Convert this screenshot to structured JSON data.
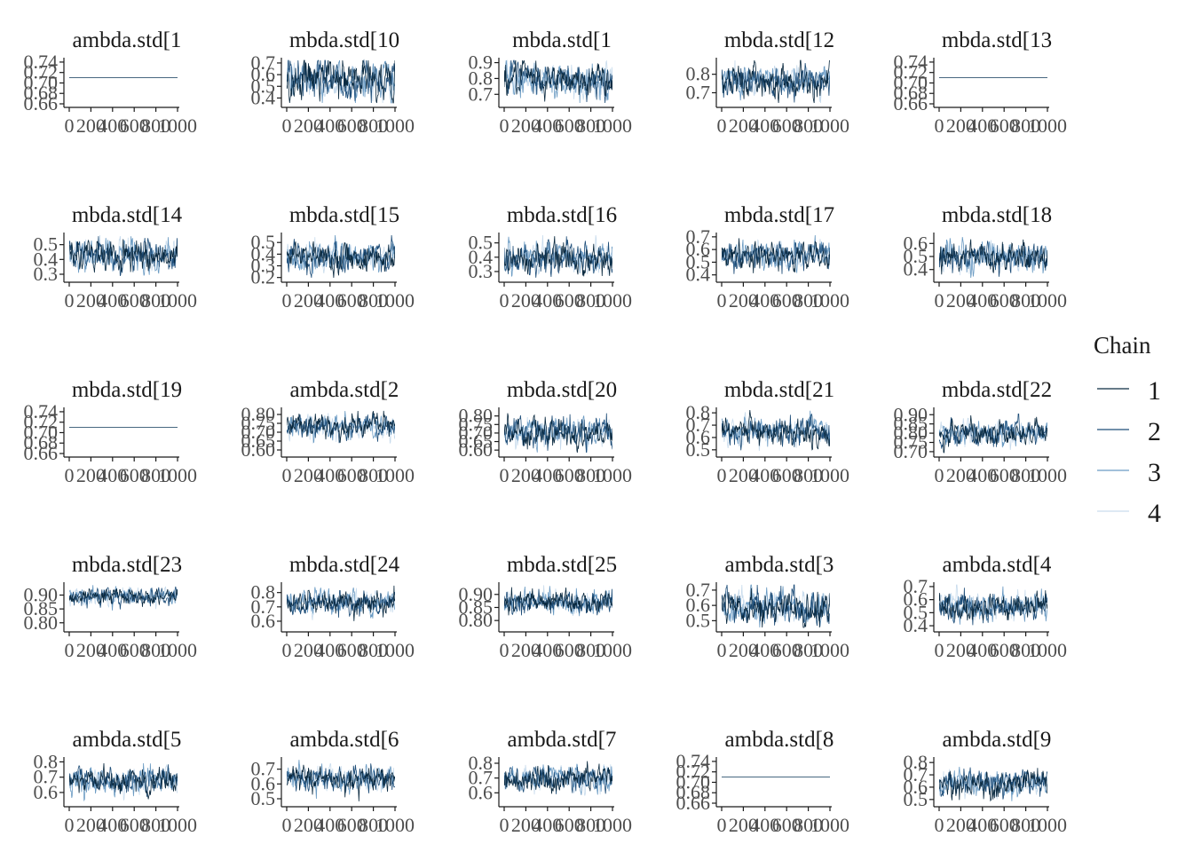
{
  "chart_data": {
    "type": "line",
    "x_range": [
      0,
      1000
    ],
    "x_tick_labels": [
      "0",
      "200",
      "400",
      "600",
      "800",
      "1000"
    ],
    "legend": {
      "title": "Chain",
      "position": "right",
      "entries": [
        {
          "label": "1",
          "color": "#0b2a40"
        },
        {
          "label": "2",
          "color": "#1f4e79"
        },
        {
          "label": "3",
          "color": "#6b9bc3"
        },
        {
          "label": "4",
          "color": "#c9dced"
        }
      ]
    },
    "panels": [
      {
        "title": "ambda.std[1",
        "y_ticks": [
          "0.66",
          "0.68",
          "0.70",
          "0.72",
          "0.74"
        ],
        "ylim": [
          0.66,
          0.745
        ],
        "center": 0.71,
        "spread": 0,
        "flat": true
      },
      {
        "title": "mbda.std[10",
        "y_ticks": [
          "0.4",
          "0.5",
          "0.6",
          "0.7"
        ],
        "ylim": [
          0.35,
          0.73
        ],
        "center": 0.56,
        "spread": 0.08
      },
      {
        "title": "mbda.std[1",
        "y_ticks": [
          "0.7",
          "0.8",
          "0.9"
        ],
        "ylim": [
          0.64,
          0.92
        ],
        "center": 0.79,
        "spread": 0.05
      },
      {
        "title": "mbda.std[12",
        "y_ticks": [
          "0.7",
          "0.8"
        ],
        "ylim": [
          0.64,
          0.88
        ],
        "center": 0.77,
        "spread": 0.04
      },
      {
        "title": "mbda.std[13",
        "y_ticks": [
          "0.66",
          "0.68",
          "0.70",
          "0.72",
          "0.74"
        ],
        "ylim": [
          0.66,
          0.745
        ],
        "center": 0.71,
        "spread": 0,
        "flat": true
      },
      {
        "title": "mbda.std[14",
        "y_ticks": [
          "0.3",
          "0.4",
          "0.5"
        ],
        "ylim": [
          0.27,
          0.57
        ],
        "center": 0.43,
        "spread": 0.05
      },
      {
        "title": "mbda.std[15",
        "y_ticks": [
          "0.2",
          "0.3",
          "0.4",
          "0.5"
        ],
        "ylim": [
          0.19,
          0.57
        ],
        "center": 0.38,
        "spread": 0.06
      },
      {
        "title": "mbda.std[16",
        "y_ticks": [
          "0.3",
          "0.4",
          "0.5"
        ],
        "ylim": [
          0.25,
          0.56
        ],
        "center": 0.39,
        "spread": 0.05
      },
      {
        "title": "mbda.std[17",
        "y_ticks": [
          "0.4",
          "0.5",
          "0.6",
          "0.7"
        ],
        "ylim": [
          0.37,
          0.72
        ],
        "center": 0.55,
        "spread": 0.05
      },
      {
        "title": "mbda.std[18",
        "y_ticks": [
          "0.4",
          "0.5",
          "0.6"
        ],
        "ylim": [
          0.33,
          0.67
        ],
        "center": 0.5,
        "spread": 0.05
      },
      {
        "title": "mbda.std[19",
        "y_ticks": [
          "0.66",
          "0.68",
          "0.70",
          "0.72",
          "0.74"
        ],
        "ylim": [
          0.66,
          0.745
        ],
        "center": 0.71,
        "spread": 0,
        "flat": true
      },
      {
        "title": "ambda.std[2",
        "y_ticks": [
          "0.60",
          "0.65",
          "0.70",
          "0.75",
          "0.80"
        ],
        "ylim": [
          0.58,
          0.83
        ],
        "center": 0.73,
        "spread": 0.03
      },
      {
        "title": "mbda.std[20",
        "y_ticks": [
          "0.60",
          "0.65",
          "0.70",
          "0.75",
          "0.80"
        ],
        "ylim": [
          0.58,
          0.84
        ],
        "center": 0.71,
        "spread": 0.04
      },
      {
        "title": "mbda.std[21",
        "y_ticks": [
          "0.5",
          "0.6",
          "0.7",
          "0.8"
        ],
        "ylim": [
          0.47,
          0.83
        ],
        "center": 0.65,
        "spread": 0.05
      },
      {
        "title": "mbda.std[22",
        "y_ticks": [
          "0.70",
          "0.75",
          "0.80",
          "0.85",
          "0.90"
        ],
        "ylim": [
          0.69,
          0.93
        ],
        "center": 0.8,
        "spread": 0.03
      },
      {
        "title": "mbda.std[23",
        "y_ticks": [
          "0.80",
          "0.85",
          "0.90"
        ],
        "ylim": [
          0.78,
          0.94
        ],
        "center": 0.895,
        "spread": 0.015
      },
      {
        "title": "mbda.std[24",
        "y_ticks": [
          "0.6",
          "0.7",
          "0.8"
        ],
        "ylim": [
          0.55,
          0.86
        ],
        "center": 0.73,
        "spread": 0.04
      },
      {
        "title": "mbda.std[25",
        "y_ticks": [
          "0.80",
          "0.85",
          "0.90"
        ],
        "ylim": [
          0.77,
          0.94
        ],
        "center": 0.87,
        "spread": 0.02
      },
      {
        "title": "ambda.std[3",
        "y_ticks": [
          "0.5",
          "0.6",
          "0.7"
        ],
        "ylim": [
          0.45,
          0.74
        ],
        "center": 0.59,
        "spread": 0.05
      },
      {
        "title": "ambda.std[4",
        "y_ticks": [
          "0.4",
          "0.5",
          "0.6",
          "0.7"
        ],
        "ylim": [
          0.38,
          0.72
        ],
        "center": 0.55,
        "spread": 0.05
      },
      {
        "title": "ambda.std[5",
        "y_ticks": [
          "0.6",
          "0.7",
          "0.8"
        ],
        "ylim": [
          0.53,
          0.82
        ],
        "center": 0.68,
        "spread": 0.04
      },
      {
        "title": "ambda.std[6",
        "y_ticks": [
          "0.5",
          "0.6",
          "0.7"
        ],
        "ylim": [
          0.47,
          0.77
        ],
        "center": 0.63,
        "spread": 0.04
      },
      {
        "title": "ambda.std[7",
        "y_ticks": [
          "0.6",
          "0.7",
          "0.8"
        ],
        "ylim": [
          0.53,
          0.83
        ],
        "center": 0.7,
        "spread": 0.04
      },
      {
        "title": "ambda.std[8",
        "y_ticks": [
          "0.66",
          "0.68",
          "0.70",
          "0.72",
          "0.74"
        ],
        "ylim": [
          0.66,
          0.745
        ],
        "center": 0.71,
        "spread": 0,
        "flat": true
      },
      {
        "title": "ambda.std[9",
        "y_ticks": [
          "0.5",
          "0.6",
          "0.7",
          "0.8"
        ],
        "ylim": [
          0.47,
          0.83
        ],
        "center": 0.63,
        "spread": 0.05
      }
    ]
  }
}
